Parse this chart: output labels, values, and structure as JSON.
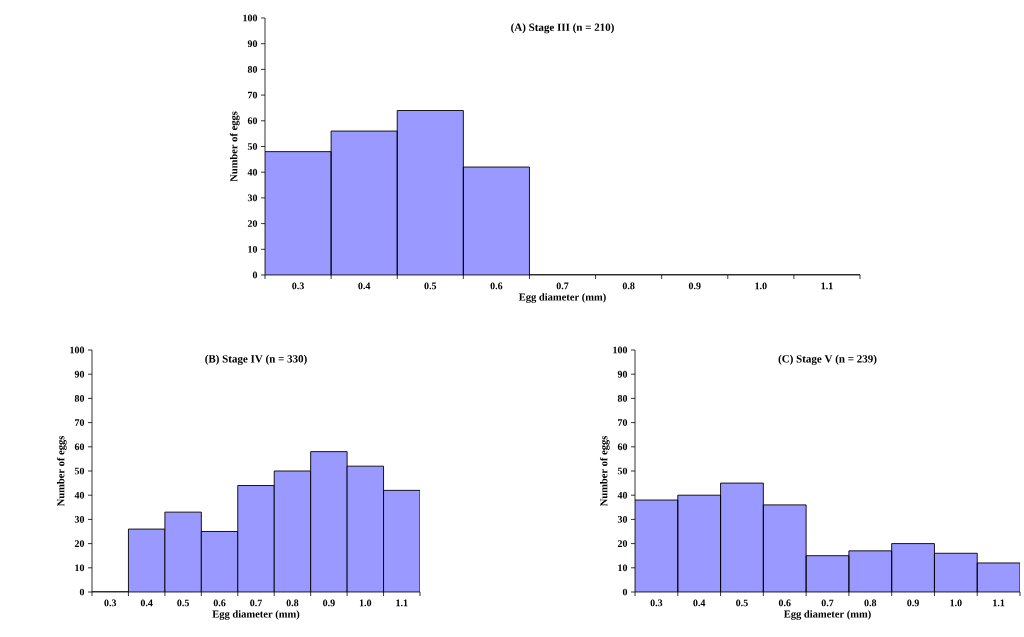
{
  "chart_data": [
    {
      "type": "bar",
      "title": "(A)  Stage III (n = 210)",
      "xlabel": "Egg diameter (mm)",
      "ylabel": "Number of eggs",
      "categories": [
        "0.3",
        "0.4",
        "0.5",
        "0.6",
        "0.7",
        "0.8",
        "0.9",
        "1.0",
        "1.1"
      ],
      "values": [
        48,
        56,
        64,
        42,
        0,
        0,
        0,
        0,
        0
      ],
      "color": "#9999ff",
      "ylim": [
        0,
        100
      ],
      "yticks": [
        0,
        10,
        20,
        30,
        40,
        50,
        60,
        70,
        80,
        90,
        100
      ]
    },
    {
      "type": "bar",
      "title": "(B)  Stage IV (n = 330)",
      "xlabel": "Egg diameter (mm)",
      "ylabel": "Number of eggs",
      "categories": [
        "0.3",
        "0.4",
        "0.5",
        "0.6",
        "0.7",
        "0.8",
        "0.9",
        "1.0",
        "1.1"
      ],
      "values": [
        0,
        26,
        33,
        25,
        44,
        50,
        58,
        52,
        42
      ],
      "color": "#9999ff",
      "ylim": [
        0,
        100
      ],
      "yticks": [
        0,
        10,
        20,
        30,
        40,
        50,
        60,
        70,
        80,
        90,
        100
      ]
    },
    {
      "type": "bar",
      "title": "(C)  Stage V (n = 239)",
      "xlabel": "Egg diameter (mm)",
      "ylabel": "Number of eggs",
      "categories": [
        "0.3",
        "0.4",
        "0.5",
        "0.6",
        "0.7",
        "0.8",
        "0.9",
        "1.0",
        "1.1"
      ],
      "values": [
        38,
        40,
        45,
        36,
        15,
        17,
        20,
        16,
        12
      ],
      "color": "#9999ff",
      "ylim": [
        0,
        100
      ],
      "yticks": [
        0,
        10,
        20,
        30,
        40,
        50,
        60,
        70,
        80,
        90,
        100
      ]
    }
  ]
}
